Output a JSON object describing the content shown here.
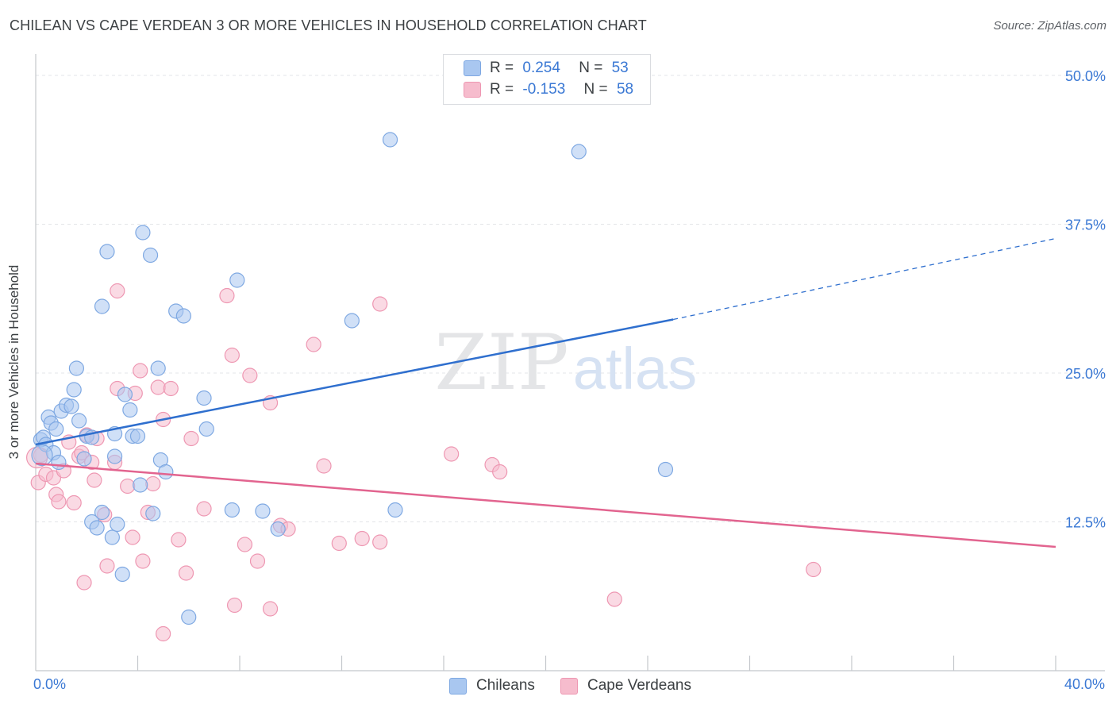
{
  "title": "CHILEAN VS CAPE VERDEAN 3 OR MORE VEHICLES IN HOUSEHOLD CORRELATION CHART",
  "source": "Source: ZipAtlas.com",
  "watermark": {
    "zip": "ZIP",
    "atlas": "atlas"
  },
  "colors": {
    "blue_fill": "#a9c7f0",
    "blue_stroke": "#7ea8e2",
    "blue_line": "#2f6fce",
    "pink_fill": "#f6bccd",
    "pink_stroke": "#ee97b2",
    "pink_line": "#e2648f",
    "axis_text": "#3a78d4",
    "grid": "#e3e5e8"
  },
  "legend": {
    "rows": [
      {
        "r_label": "R =",
        "r_value": "0.254",
        "n_label": "N =",
        "n_value": "53"
      },
      {
        "r_label": "R =",
        "r_value": "-0.153",
        "n_label": "N =",
        "n_value": "58"
      }
    ]
  },
  "bottom_legend": {
    "series1": "Chileans",
    "series2": "Cape Verdeans"
  },
  "chart_data": {
    "type": "scatter",
    "ylabel": "3 or more Vehicles in Household",
    "xlim": [
      0,
      40
    ],
    "ylim": [
      0,
      50
    ],
    "x_tick_labels": {
      "min": "0.0%",
      "max": "40.0%"
    },
    "y_ticks": [
      12.5,
      25.0,
      37.5,
      50.0
    ],
    "y_tick_labels": [
      "12.5%",
      "25.0%",
      "37.5%",
      "50.0%"
    ],
    "x_minor_ticks": [
      4,
      8,
      12,
      16,
      20,
      24,
      28,
      32,
      36,
      40
    ],
    "series": [
      {
        "name": "Chileans",
        "trend": {
          "x0": 0,
          "y0": 19.0,
          "x1": 25,
          "y1": 29.5,
          "dash_to_x": 40,
          "dash_to_y": 36.3
        },
        "points": [
          [
            0.2,
            19.4
          ],
          [
            0.3,
            19.6
          ],
          [
            0.4,
            19.0
          ],
          [
            0.5,
            21.3
          ],
          [
            0.6,
            20.8
          ],
          [
            0.7,
            18.3
          ],
          [
            0.8,
            20.3
          ],
          [
            0.9,
            17.5
          ],
          [
            1.0,
            21.8
          ],
          [
            1.2,
            22.3
          ],
          [
            1.4,
            22.2
          ],
          [
            1.5,
            23.6
          ],
          [
            1.6,
            25.4
          ],
          [
            1.7,
            21.0
          ],
          [
            1.9,
            17.8
          ],
          [
            2.0,
            19.7
          ],
          [
            2.2,
            19.6
          ],
          [
            2.2,
            12.5
          ],
          [
            2.4,
            12.0
          ],
          [
            2.6,
            30.6
          ],
          [
            2.6,
            13.3
          ],
          [
            2.8,
            35.2
          ],
          [
            3.0,
            11.2
          ],
          [
            3.1,
            19.9
          ],
          [
            3.1,
            18.0
          ],
          [
            3.2,
            12.3
          ],
          [
            3.4,
            8.1
          ],
          [
            3.5,
            23.2
          ],
          [
            3.7,
            21.9
          ],
          [
            3.8,
            19.7
          ],
          [
            4.0,
            19.7
          ],
          [
            4.1,
            15.6
          ],
          [
            4.2,
            36.8
          ],
          [
            4.5,
            34.9
          ],
          [
            4.6,
            13.2
          ],
          [
            4.8,
            25.4
          ],
          [
            4.9,
            17.7
          ],
          [
            5.1,
            16.7
          ],
          [
            5.5,
            30.2
          ],
          [
            5.8,
            29.8
          ],
          [
            6.0,
            4.5
          ],
          [
            6.6,
            22.9
          ],
          [
            6.7,
            20.3
          ],
          [
            7.7,
            13.5
          ],
          [
            7.9,
            32.8
          ],
          [
            8.9,
            13.4
          ],
          [
            9.5,
            11.9
          ],
          [
            12.4,
            29.4
          ],
          [
            13.9,
            44.6
          ],
          [
            14.1,
            13.5
          ],
          [
            21.3,
            43.6
          ],
          [
            24.7,
            16.9
          ],
          [
            0.25,
            18.1
          ]
        ]
      },
      {
        "name": "Cape Verdeans",
        "trend": {
          "x0": 0,
          "y0": 17.4,
          "x1": 40,
          "y1": 10.4
        },
        "points": [
          [
            0.1,
            15.8
          ],
          [
            0.2,
            18.1
          ],
          [
            0.4,
            16.5
          ],
          [
            0.7,
            16.2
          ],
          [
            0.8,
            14.8
          ],
          [
            0.9,
            14.2
          ],
          [
            1.1,
            16.8
          ],
          [
            1.3,
            19.2
          ],
          [
            1.5,
            14.1
          ],
          [
            1.7,
            18.0
          ],
          [
            1.8,
            18.3
          ],
          [
            1.9,
            7.4
          ],
          [
            2.0,
            19.8
          ],
          [
            2.2,
            17.5
          ],
          [
            2.3,
            16.0
          ],
          [
            2.4,
            19.5
          ],
          [
            2.7,
            13.1
          ],
          [
            2.8,
            8.8
          ],
          [
            3.1,
            17.5
          ],
          [
            3.2,
            23.7
          ],
          [
            3.2,
            31.9
          ],
          [
            3.6,
            15.5
          ],
          [
            3.8,
            11.2
          ],
          [
            3.9,
            23.3
          ],
          [
            4.1,
            25.2
          ],
          [
            4.2,
            9.2
          ],
          [
            4.4,
            13.3
          ],
          [
            4.6,
            15.7
          ],
          [
            4.8,
            23.8
          ],
          [
            5.0,
            21.1
          ],
          [
            5.0,
            3.1
          ],
          [
            5.3,
            23.7
          ],
          [
            5.6,
            11.0
          ],
          [
            5.9,
            8.2
          ],
          [
            6.1,
            19.5
          ],
          [
            6.6,
            13.6
          ],
          [
            7.5,
            31.5
          ],
          [
            7.7,
            26.5
          ],
          [
            7.8,
            5.5
          ],
          [
            8.2,
            10.6
          ],
          [
            8.4,
            24.8
          ],
          [
            8.7,
            9.2
          ],
          [
            9.2,
            22.5
          ],
          [
            9.2,
            5.2
          ],
          [
            9.6,
            12.2
          ],
          [
            9.9,
            11.9
          ],
          [
            10.9,
            27.4
          ],
          [
            11.3,
            17.2
          ],
          [
            11.9,
            10.7
          ],
          [
            12.8,
            11.1
          ],
          [
            13.5,
            30.8
          ],
          [
            13.5,
            10.8
          ],
          [
            16.3,
            18.2
          ],
          [
            17.9,
            17.3
          ],
          [
            18.2,
            16.7
          ],
          [
            22.7,
            6.0
          ],
          [
            30.5,
            8.5
          ],
          [
            0.05,
            17.9
          ]
        ]
      }
    ]
  }
}
